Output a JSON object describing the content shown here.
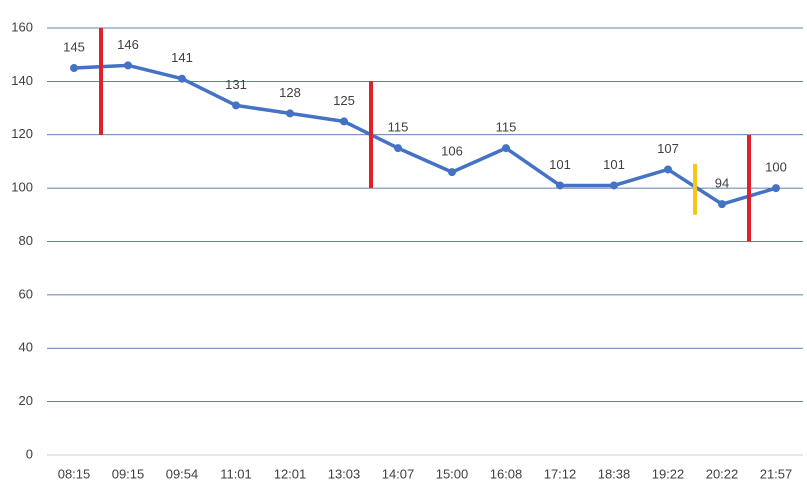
{
  "chart_data": {
    "type": "line",
    "categories": [
      "08:15",
      "09:15",
      "09:54",
      "11:01",
      "12:01",
      "13:03",
      "14:07",
      "15:00",
      "16:08",
      "17:12",
      "18:38",
      "19:22",
      "20:22",
      "21:57"
    ],
    "values": [
      145,
      146,
      141,
      131,
      128,
      125,
      115,
      106,
      115,
      101,
      101,
      107,
      94,
      100
    ],
    "color": "#4472c4",
    "ylim": [
      0,
      160
    ],
    "yticks": [
      0,
      20,
      40,
      60,
      80,
      100,
      120,
      140,
      160
    ],
    "grid": true,
    "ranges": [
      {
        "x": 0.5,
        "low": 120,
        "high": 160,
        "color": "#e0202a"
      },
      {
        "x": 5.5,
        "low": 100,
        "high": 140,
        "color": "#e0202a"
      },
      {
        "x": 11.5,
        "low": 90,
        "high": 109,
        "color": "#f5c518"
      },
      {
        "x": 12.5,
        "low": 80,
        "high": 120,
        "color": "#e0202a"
      }
    ]
  }
}
